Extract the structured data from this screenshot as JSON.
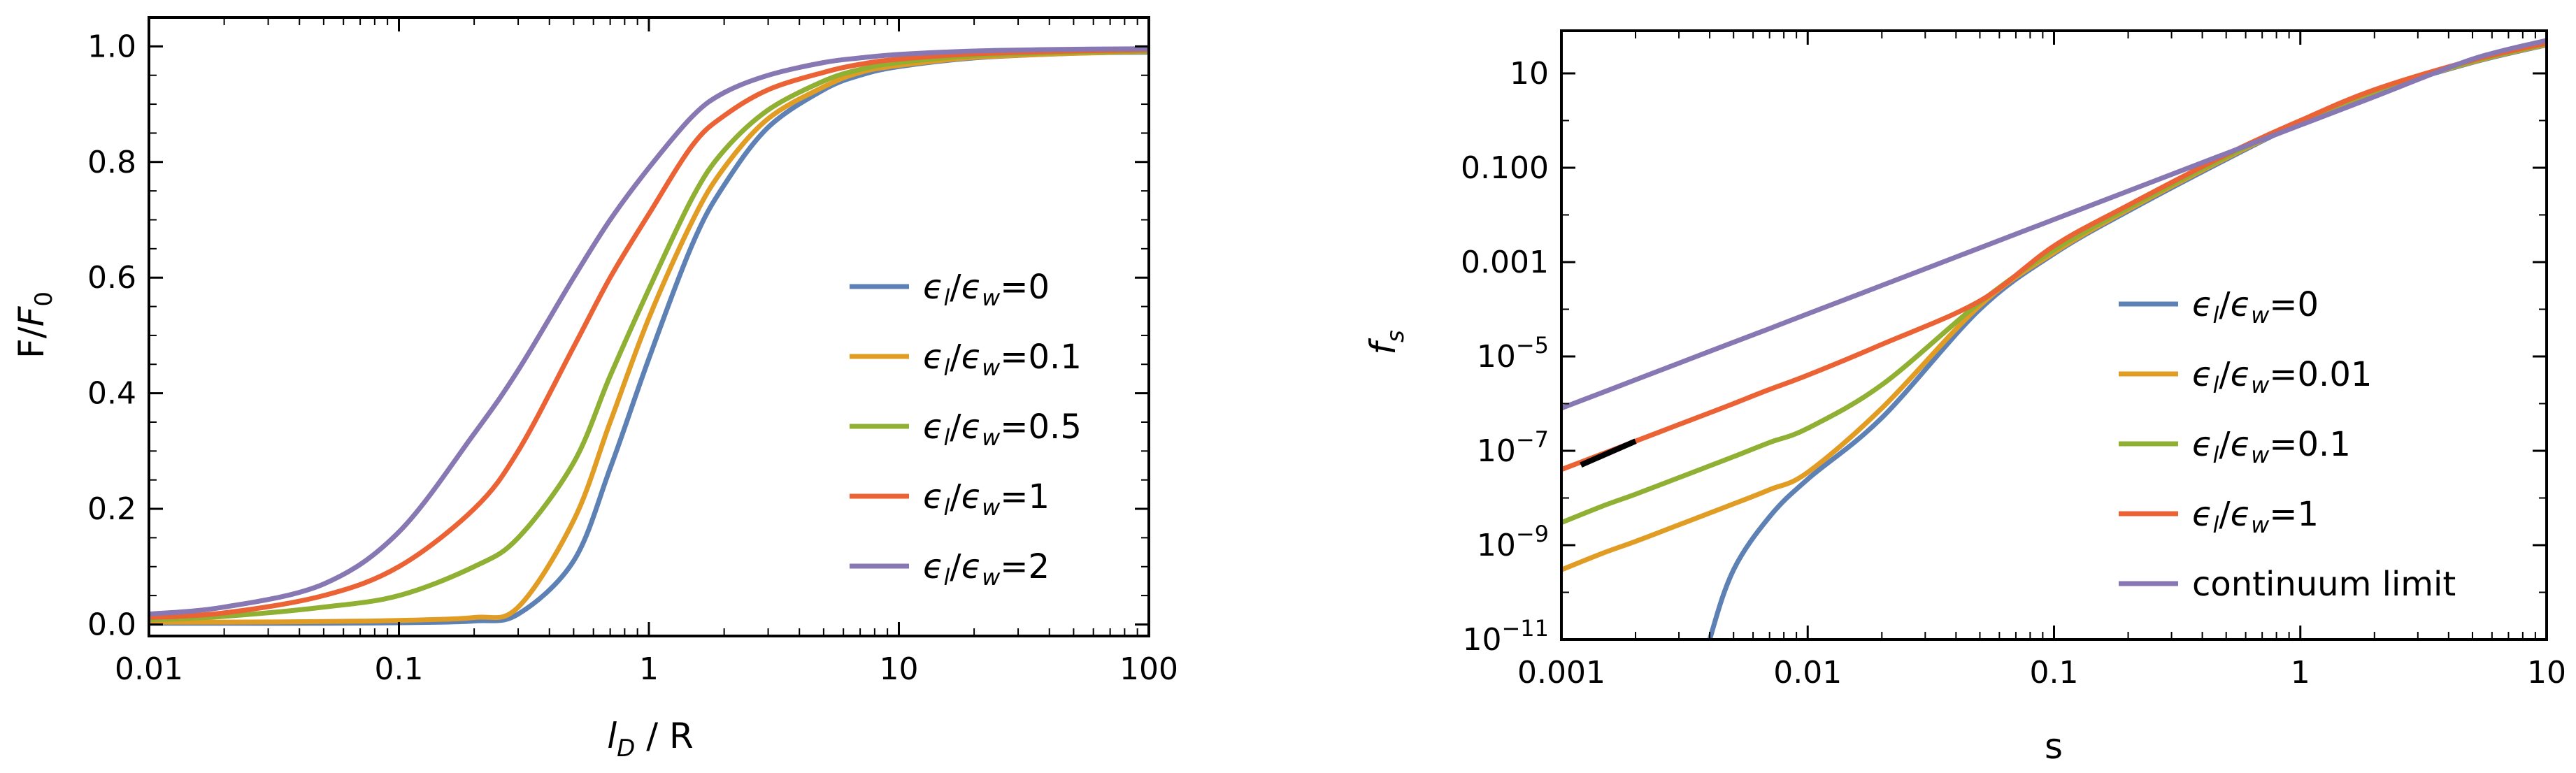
{
  "chart_data": [
    {
      "id": "left",
      "type": "line",
      "title": "",
      "xlabel": {
        "base": "l",
        "sub": "D",
        "rest": " / R"
      },
      "ylabel": {
        "base": "F/",
        "var": "F",
        "sub": "0"
      },
      "xscale": "log",
      "xlim": [
        0.01,
        100
      ],
      "ylim": [
        -0.02,
        1.05
      ],
      "xticks": [
        {
          "value": 0.01,
          "label": "0.01"
        },
        {
          "value": 0.1,
          "label": "0.1"
        },
        {
          "value": 1,
          "label": "1"
        },
        {
          "value": 10,
          "label": "10"
        },
        {
          "value": 100,
          "label": "100"
        }
      ],
      "yticks": [
        {
          "value": 0.0,
          "label": "0.0"
        },
        {
          "value": 0.2,
          "label": "0.2"
        },
        {
          "value": 0.4,
          "label": "0.4"
        },
        {
          "value": 0.6,
          "label": "0.6"
        },
        {
          "value": 0.8,
          "label": "0.8"
        },
        {
          "value": 1.0,
          "label": "1.0"
        }
      ],
      "legend_position": "center-right",
      "x": [
        0.01,
        0.02,
        0.05,
        0.1,
        0.2,
        0.3,
        0.5,
        0.7,
        1,
        1.5,
        2,
        3,
        5,
        7,
        10,
        20,
        50,
        100
      ],
      "series": [
        {
          "name": "ε_l/ε_w=0",
          "color": "#5e81b5",
          "legend": {
            "main": "=0"
          },
          "values": [
            0.002,
            0.002,
            0.002,
            0.003,
            0.006,
            0.018,
            0.11,
            0.27,
            0.46,
            0.66,
            0.76,
            0.86,
            0.925,
            0.95,
            0.965,
            0.98,
            0.988,
            0.99
          ]
        },
        {
          "name": "ε_l/ε_w=0.1",
          "color": "#e19c24",
          "legend": {
            "main": "=0.1"
          },
          "values": [
            0.004,
            0.004,
            0.005,
            0.007,
            0.012,
            0.03,
            0.18,
            0.35,
            0.53,
            0.7,
            0.79,
            0.875,
            0.93,
            0.955,
            0.967,
            0.981,
            0.988,
            0.991
          ]
        },
        {
          "name": "ε_l/ε_w=0.5",
          "color": "#8fb032",
          "legend": {
            "main": "=0.5"
          },
          "values": [
            0.008,
            0.014,
            0.03,
            0.05,
            0.1,
            0.15,
            0.28,
            0.43,
            0.58,
            0.74,
            0.82,
            0.89,
            0.94,
            0.96,
            0.972,
            0.984,
            0.99,
            0.992
          ]
        },
        {
          "name": "ε_l/ε_w=1",
          "color": "#eb6235",
          "legend": {
            "main": "=1"
          },
          "values": [
            0.012,
            0.02,
            0.05,
            0.1,
            0.2,
            0.3,
            0.48,
            0.6,
            0.71,
            0.83,
            0.88,
            0.925,
            0.955,
            0.969,
            0.978,
            0.987,
            0.992,
            0.994
          ]
        },
        {
          "name": "ε_l/ε_w=2",
          "color": "#8778b3",
          "legend": {
            "main": "=2"
          },
          "values": [
            0.018,
            0.03,
            0.07,
            0.16,
            0.33,
            0.44,
            0.6,
            0.7,
            0.79,
            0.88,
            0.92,
            0.95,
            0.972,
            0.98,
            0.986,
            0.992,
            0.995,
            0.996
          ]
        }
      ]
    },
    {
      "id": "right",
      "type": "line",
      "title": "",
      "xlabel": {
        "text": "s"
      },
      "ylabel": {
        "base": "f",
        "sub": "s"
      },
      "xscale": "log",
      "yscale": "log",
      "xlim": [
        0.001,
        10
      ],
      "ylim": [
        1e-11,
        80
      ],
      "xticks": [
        {
          "value": 0.001,
          "label": "0.001"
        },
        {
          "value": 0.01,
          "label": "0.01"
        },
        {
          "value": 0.1,
          "label": "0.1"
        },
        {
          "value": 1,
          "label": "1"
        },
        {
          "value": 10,
          "label": "10"
        }
      ],
      "yticks": [
        {
          "value": 1e-11,
          "base": "10",
          "exp": "−11"
        },
        {
          "value": 1e-09,
          "base": "10",
          "exp": "−9"
        },
        {
          "value": 1e-07,
          "base": "10",
          "exp": "−7"
        },
        {
          "value": 1e-05,
          "base": "10",
          "exp": "−5"
        },
        {
          "value": 0.001,
          "base": "0.001",
          "exp": ""
        },
        {
          "value": 0.1,
          "base": "0.100",
          "exp": ""
        },
        {
          "value": 10,
          "base": "10",
          "exp": ""
        }
      ],
      "legend_position": "bottom-right",
      "x": [
        0.001,
        0.0015,
        0.002,
        0.003,
        0.004,
        0.005,
        0.007,
        0.01,
        0.02,
        0.05,
        0.1,
        0.2,
        0.5,
        1,
        2,
        5,
        10
      ],
      "series": [
        {
          "name": "ε_l/ε_w=0",
          "color": "#5e81b5",
          "legend": {
            "main": "=0"
          },
          "values": [
            null,
            null,
            null,
            null,
            1e-11,
            3e-10,
            4e-09,
            2.5e-08,
            5e-07,
            0.0001,
            0.0015,
            0.012,
            0.15,
            0.9,
            4,
            17,
            40
          ]
        },
        {
          "name": "ε_l/ε_w=0.01",
          "color": "#e19c24",
          "legend": {
            "main": "=0.01"
          },
          "values": [
            3e-10,
            7e-10,
            1.2e-09,
            2.7e-09,
            4.8e-09,
            7.5e-09,
            1.5e-08,
            3.5e-08,
            8e-07,
            0.00012,
            0.0016,
            0.013,
            0.16,
            0.92,
            4.1,
            17.5,
            41
          ]
        },
        {
          "name": "ε_l/ε_w=0.1",
          "color": "#8fb032",
          "legend": {
            "main": "=0.1"
          },
          "values": [
            3e-09,
            7e-09,
            1.2e-08,
            2.7e-08,
            4.8e-08,
            7.5e-08,
            1.5e-07,
            3e-07,
            2.5e-06,
            0.00014,
            0.0018,
            0.014,
            0.17,
            0.95,
            4.2,
            18,
            42
          ]
        },
        {
          "name": "ε_l/ε_w=1",
          "color": "#eb6235",
          "legend": {
            "main": "=1"
          },
          "values": [
            4e-08,
            9e-08,
            1.6e-07,
            3.6e-07,
            6.4e-07,
            1e-06,
            2e-06,
            4e-06,
            1.8e-05,
            0.00015,
            0.0022,
            0.016,
            0.19,
            1.0,
            4.5,
            19,
            44
          ]
        },
        {
          "name": "continuum limit",
          "color": "#8778b3",
          "legend": {
            "text": "continuum limit"
          },
          "values": [
            8e-07,
            1.8e-06,
            3.2e-06,
            7.2e-06,
            1.28e-05,
            2e-05,
            3.9e-05,
            8e-05,
            0.00032,
            0.002,
            0.008,
            0.032,
            0.2,
            0.8,
            3.2,
            20,
            50
          ]
        }
      ],
      "annotation": {
        "name": "slope-marker",
        "color": "#000000",
        "x": [
          0.0012,
          0.002
        ],
        "y": [
          5e-08,
          1.6e-07
        ]
      }
    }
  ],
  "legend_prefix": {
    "eps1": "ϵ",
    "sub1": "l",
    "slash": "/",
    "eps2": "ϵ",
    "sub2": "w"
  }
}
